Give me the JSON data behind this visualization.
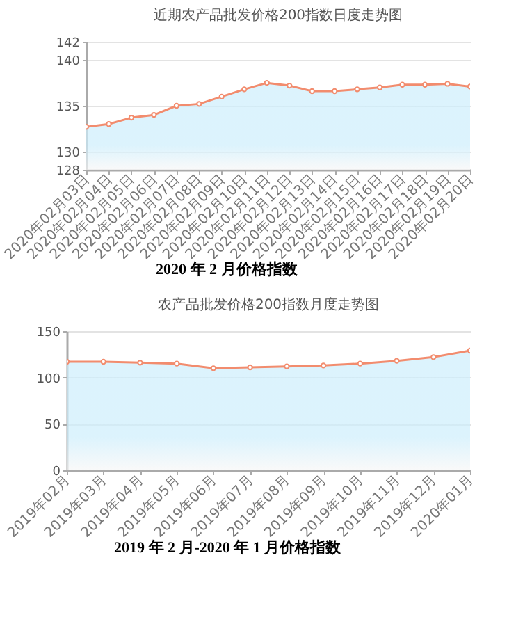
{
  "chart_data": [
    {
      "type": "area",
      "title": "近期农产品批发价格200指数日度走势图",
      "categories": [
        "2020年02月03日",
        "2020年02月04日",
        "2020年02月05日",
        "2020年02月06日",
        "2020年02月07日",
        "2020年02月08日",
        "2020年02月09日",
        "2020年02月10日",
        "2020年02月11日",
        "2020年02月12日",
        "2020年02月13日",
        "2020年02月14日",
        "2020年02月15日",
        "2020年02月16日",
        "2020年02月17日",
        "2020年02月18日",
        "2020年02月19日",
        "2020年02月20日"
      ],
      "series": [
        {
          "color": "#f28c6e",
          "values": [
            132.7,
            133.0,
            133.7,
            134.0,
            135.0,
            135.2,
            136.0,
            136.8,
            137.5,
            137.2,
            136.6,
            136.6,
            136.8,
            137.0,
            137.3,
            137.3,
            137.4,
            137.1
          ]
        }
      ],
      "ylim": [
        128,
        142
      ],
      "yticks": [
        128,
        130,
        135,
        140,
        142
      ],
      "grid": "y",
      "marker": "circle",
      "annotations": [
        "2020 年 2 月价格指数"
      ]
    },
    {
      "type": "area",
      "title": "农产品批发价格200指数月度走势图",
      "categories": [
        "2019年02月",
        "2019年03月",
        "2019年04月",
        "2019年05月",
        "2019年06月",
        "2019年07月",
        "2019年08月",
        "2019年09月",
        "2019年10月",
        "2019年11月",
        "2019年12月",
        "2020年01月"
      ],
      "series": [
        {
          "color": "#f28c6e",
          "values": [
            117,
            117,
            116,
            115,
            110,
            111,
            112,
            113,
            115,
            118,
            122,
            129
          ]
        }
      ],
      "ylim": [
        0,
        150
      ],
      "yticks": [
        0,
        50,
        100,
        150
      ],
      "grid": "y",
      "marker": "circle",
      "annotations": [
        "2019 年 2 月-2020 年 1 月价格指数"
      ]
    }
  ]
}
